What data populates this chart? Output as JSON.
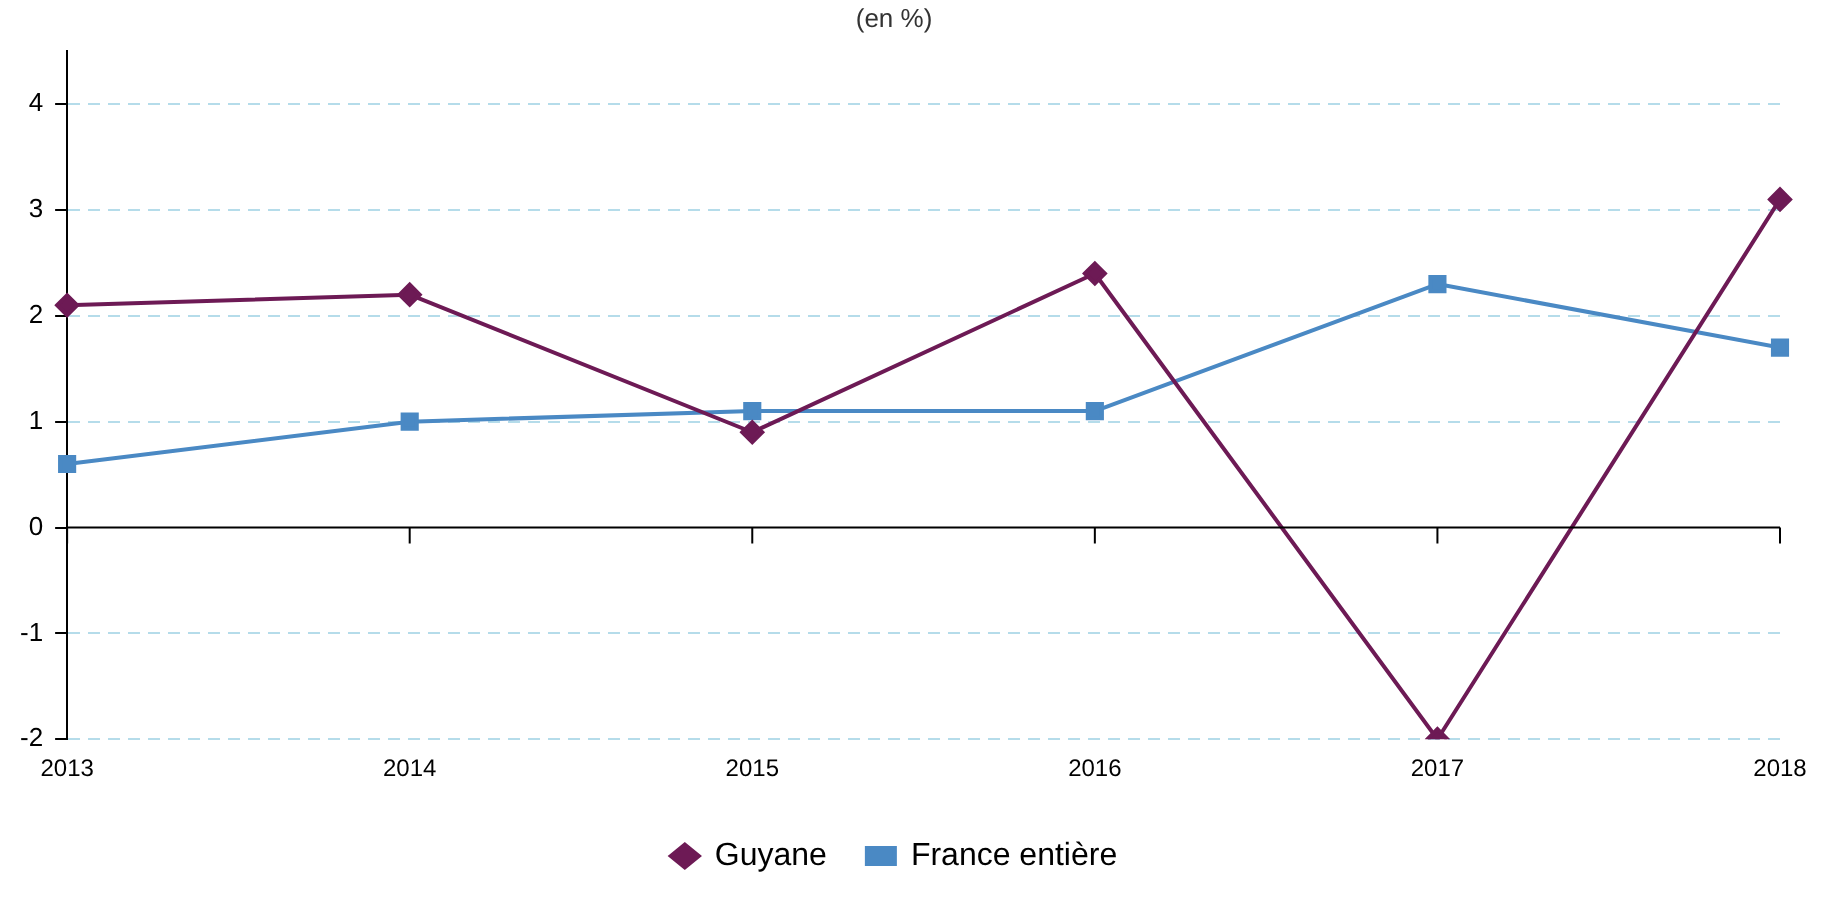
{
  "chart_data": {
    "type": "line",
    "title": "(en %)",
    "categories": [
      "2013",
      "2014",
      "2015",
      "2016",
      "2017",
      "2018"
    ],
    "series": [
      {
        "name": "Guyane",
        "color": "#6d1a55",
        "marker": "diamond",
        "values": [
          2.1,
          2.2,
          0.9,
          2.4,
          -2,
          3.1
        ]
      },
      {
        "name": "France entière",
        "color": "#4a89c4",
        "marker": "square",
        "values": [
          0.6,
          1.0,
          1.1,
          1.1,
          2.3,
          1.7
        ]
      }
    ],
    "ylim": [
      -2,
      4.5
    ],
    "yticks": [
      -2,
      -1,
      0,
      1,
      2,
      3,
      4
    ],
    "grid": "y",
    "legend": "bottom",
    "line_style": "solid"
  }
}
